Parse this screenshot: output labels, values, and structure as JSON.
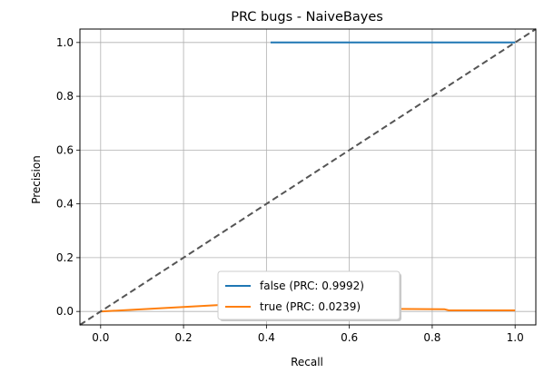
{
  "chart_data": {
    "type": "line",
    "title": "PRC bugs - NaiveBayes",
    "xlabel": "Recall",
    "ylabel": "Precision",
    "xlim": [
      -0.05,
      1.05
    ],
    "ylim": [
      -0.05,
      1.05
    ],
    "xticks": [
      "0.0",
      "0.2",
      "0.4",
      "0.6",
      "0.8",
      "1.0"
    ],
    "yticks": [
      "0.0",
      "0.2",
      "0.4",
      "0.6",
      "0.8",
      "1.0"
    ],
    "grid": true,
    "legend_position": "bottom-center",
    "series": [
      {
        "name": "false (PRC: 0.9992)",
        "color": "#1f77b4",
        "x": [
          0.41,
          1.0
        ],
        "y": [
          1.0,
          1.0
        ]
      },
      {
        "name": "true (PRC: 0.0239)",
        "color": "#ff7f0e",
        "x": [
          0.0,
          0.3,
          0.45,
          0.83,
          0.84,
          1.0
        ],
        "y": [
          0.0,
          0.025,
          0.012,
          0.008,
          0.004,
          0.004
        ]
      }
    ],
    "reference_line": {
      "x": [
        -0.05,
        1.05
      ],
      "y": [
        -0.05,
        1.05
      ],
      "color": "#555555",
      "style": "dashed"
    }
  }
}
